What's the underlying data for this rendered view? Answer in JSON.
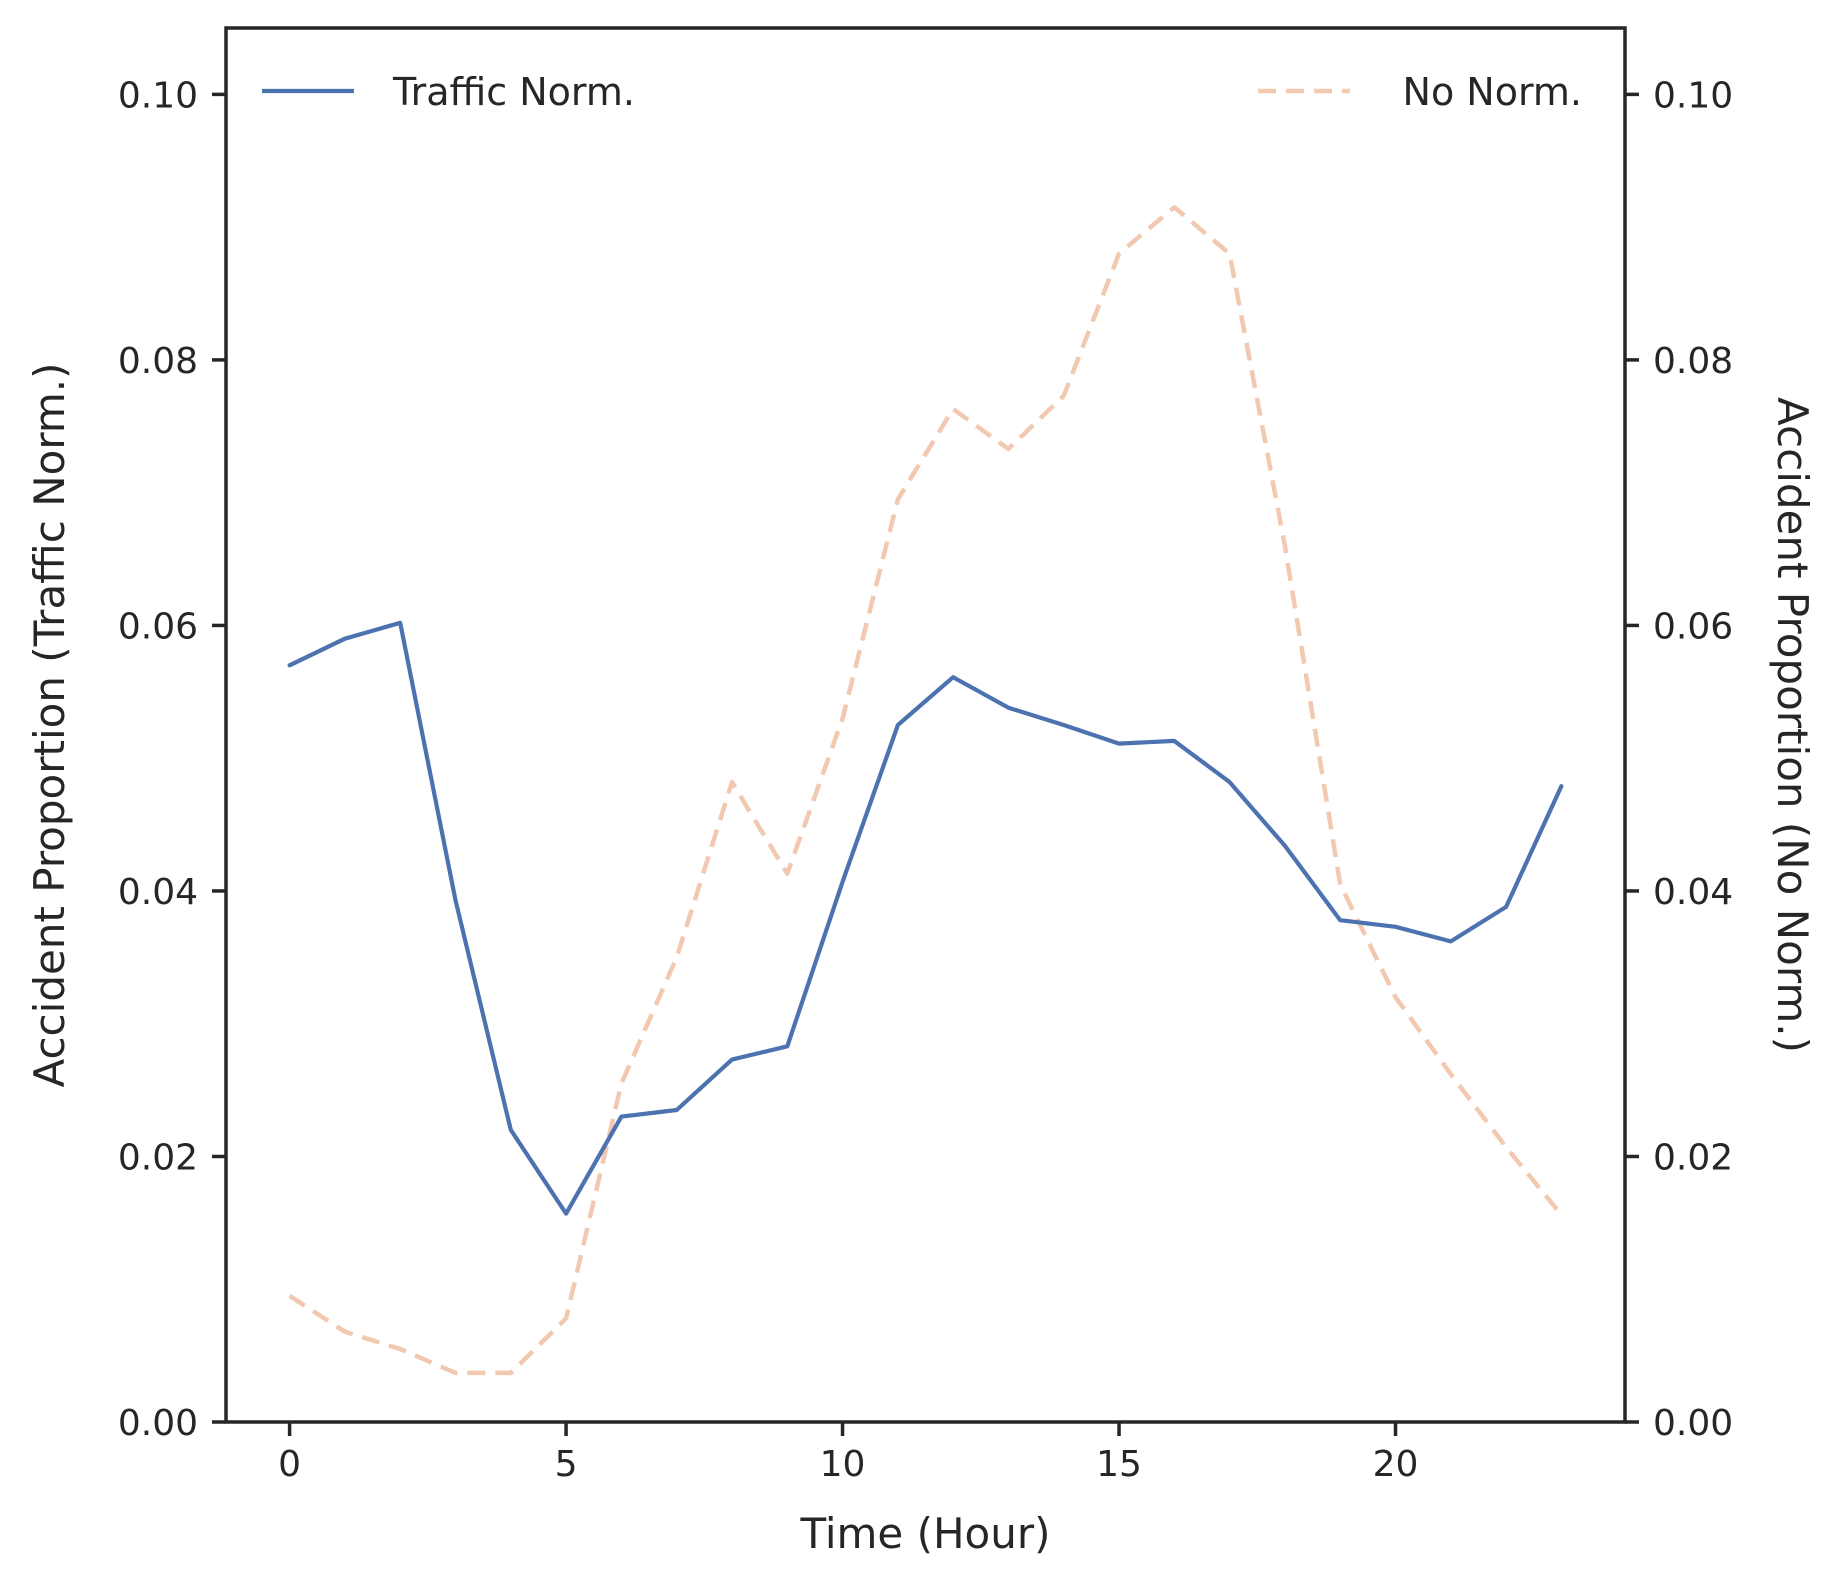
{
  "chart_data": {
    "type": "line",
    "title": "",
    "xlabel": "Time (Hour)",
    "ylabel": "Accident Proportion (Traffic Norm.)",
    "ylabel_right": "Accident Proportion (No Norm.)",
    "xlim": [
      -1.15,
      24.15
    ],
    "ylim": [
      0,
      0.105
    ],
    "ylim_right": [
      0,
      0.105
    ],
    "xticks": [
      0,
      5,
      10,
      15,
      20
    ],
    "xtick_labels": [
      "0",
      "5",
      "10",
      "15",
      "20"
    ],
    "yticks": [
      0,
      0.02,
      0.04,
      0.06,
      0.08,
      0.1
    ],
    "ytick_labels": [
      "0.00",
      "0.02",
      "0.04",
      "0.06",
      "0.08",
      "0.10"
    ],
    "yticks_right": [
      0,
      0.02,
      0.04,
      0.06,
      0.08,
      0.1
    ],
    "ytick_labels_right": [
      "0.00",
      "0.02",
      "0.04",
      "0.06",
      "0.08",
      "0.10"
    ],
    "grid": false,
    "x": [
      0,
      1,
      2,
      3,
      4,
      5,
      6,
      7,
      8,
      9,
      10,
      11,
      12,
      13,
      14,
      15,
      16,
      17,
      18,
      19,
      20,
      21,
      22,
      23
    ],
    "series": [
      {
        "name": "Traffic Norm.",
        "axis": "left",
        "color": "#4c72b0",
        "style": "solid",
        "legend_position": "top-left",
        "values": [
          0.057,
          0.059,
          0.0602,
          0.0393,
          0.022,
          0.0157,
          0.023,
          0.0235,
          0.0273,
          0.0283,
          0.0407,
          0.0525,
          0.0561,
          0.0538,
          0.0525,
          0.0511,
          0.0513,
          0.0482,
          0.0434,
          0.0378,
          0.0373,
          0.0362,
          0.0388,
          0.0479
        ]
      },
      {
        "name": "No Norm.",
        "axis": "right",
        "color": "#f2c9b0",
        "style": "dashed",
        "legend_position": "top-right",
        "values": [
          0.0095,
          0.0068,
          0.0055,
          0.0037,
          0.0037,
          0.0078,
          0.0255,
          0.035,
          0.0482,
          0.0413,
          0.053,
          0.0695,
          0.0763,
          0.0733,
          0.0773,
          0.088,
          0.0915,
          0.088,
          0.066,
          0.0405,
          0.032,
          0.0262,
          0.0207,
          0.0156
        ]
      }
    ]
  }
}
